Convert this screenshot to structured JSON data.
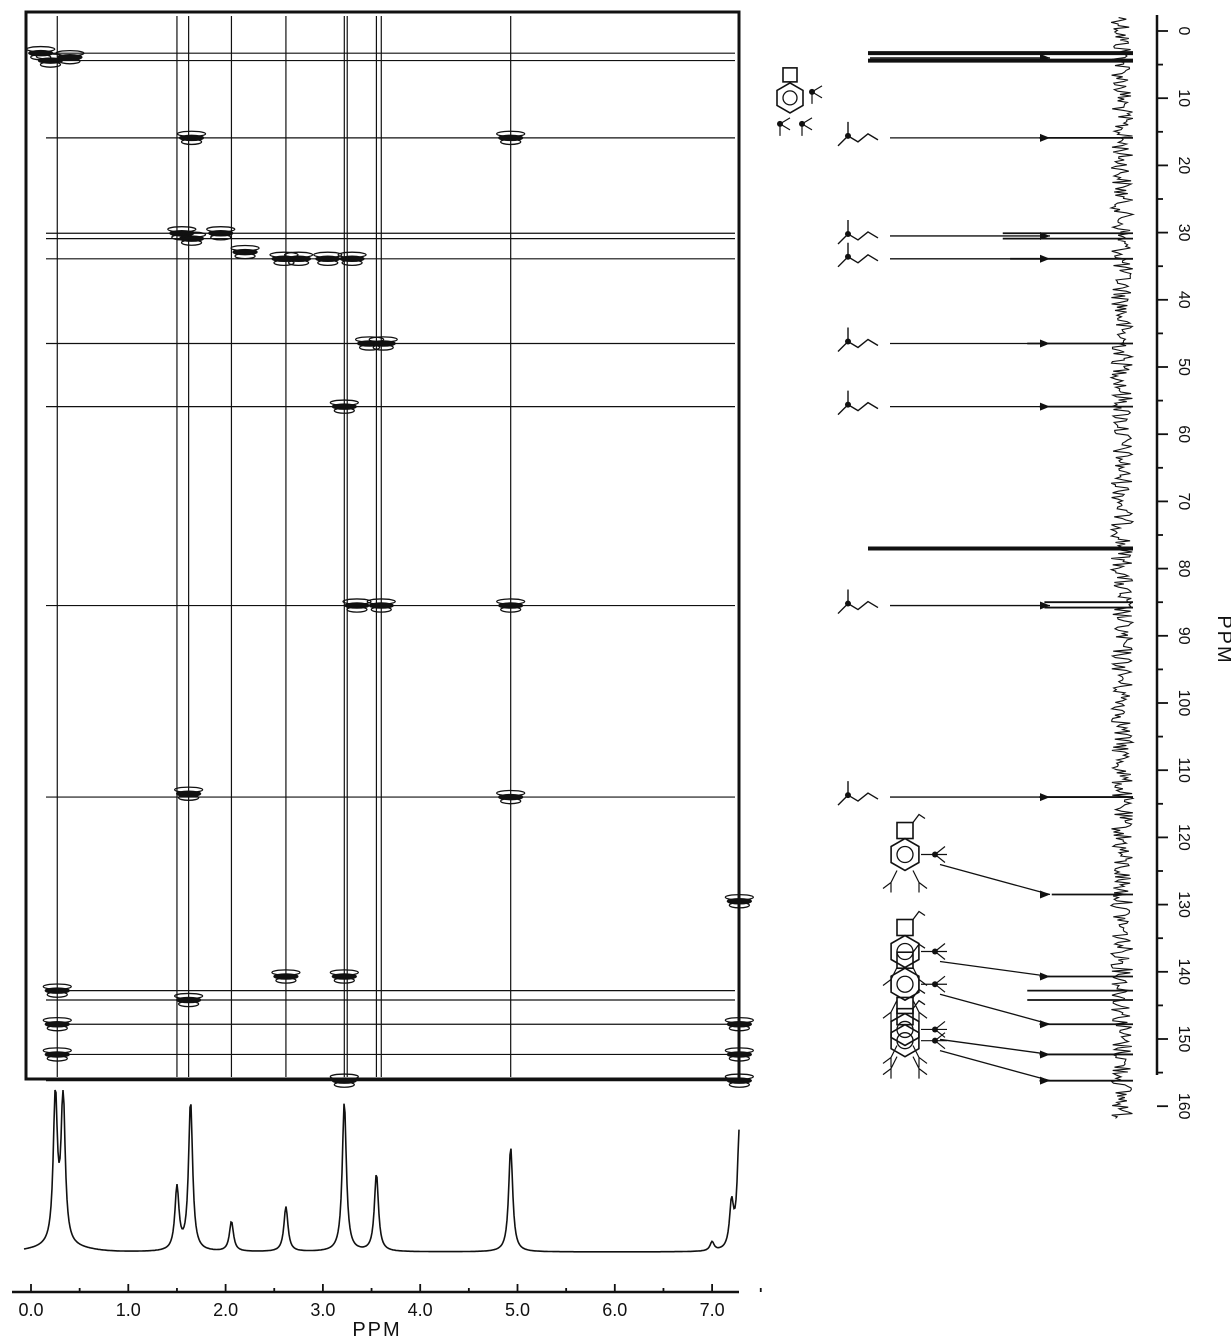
{
  "colors": {
    "ink": "#111111",
    "background": "#ffffff"
  },
  "chart_data": [
    {
      "type": "heatmap",
      "subtype": "2D HETCOR contour map",
      "title": "",
      "xlabel": "PPM",
      "ylabel": "PPM",
      "xlim": [
        0.0,
        7.5
      ],
      "ylim": [
        0,
        160
      ],
      "x_ticks": [
        0.0,
        1.0,
        2.0,
        3.0,
        4.0,
        5.0,
        6.0,
        7.0
      ],
      "x_tick_labels": [
        "0.0",
        "1.0",
        "2.0",
        "3.0",
        "4.0",
        "5.0",
        "6.0",
        "7.0"
      ],
      "y_ticks": [
        0,
        10,
        20,
        30,
        40,
        50,
        60,
        70,
        80,
        90,
        100,
        110,
        120,
        130,
        140,
        150,
        160
      ],
      "y_tick_labels": [
        "0",
        "10",
        "20",
        "30",
        "40",
        "50",
        "60",
        "70",
        "80",
        "90",
        "100",
        "110",
        "120",
        "130",
        "140",
        "150",
        "160"
      ],
      "grid": false,
      "proton_guide_lines_ppm": [
        0.27,
        1.5,
        1.62,
        2.06,
        2.62,
        3.22,
        3.25,
        3.55,
        3.6,
        4.93
      ],
      "carbon_guide_lines_ppm": [
        3.3,
        4.4,
        15.9,
        30.1,
        30.9,
        33.9,
        46.5,
        55.9,
        85.5,
        114.0,
        142.8,
        144.2,
        147.8,
        152.3,
        156.2
      ],
      "cross_peaks": [
        {
          "x": 0.1,
          "y": 3.3
        },
        {
          "x": 0.2,
          "y": 4.4
        },
        {
          "x": 0.4,
          "y": 3.9
        },
        {
          "x": 1.65,
          "y": 15.9
        },
        {
          "x": 4.93,
          "y": 15.9
        },
        {
          "x": 1.55,
          "y": 30.1
        },
        {
          "x": 1.65,
          "y": 30.9
        },
        {
          "x": 1.95,
          "y": 30.1
        },
        {
          "x": 2.2,
          "y": 32.9
        },
        {
          "x": 2.6,
          "y": 33.9
        },
        {
          "x": 2.75,
          "y": 33.9
        },
        {
          "x": 3.05,
          "y": 33.9
        },
        {
          "x": 3.3,
          "y": 33.9
        },
        {
          "x": 3.48,
          "y": 46.5
        },
        {
          "x": 3.62,
          "y": 46.5
        },
        {
          "x": 3.22,
          "y": 55.9
        },
        {
          "x": 3.35,
          "y": 85.5
        },
        {
          "x": 3.6,
          "y": 85.5
        },
        {
          "x": 4.93,
          "y": 85.5
        },
        {
          "x": 1.62,
          "y": 113.5
        },
        {
          "x": 4.93,
          "y": 114.0
        },
        {
          "x": 7.28,
          "y": 129.5
        },
        {
          "x": 2.62,
          "y": 140.7
        },
        {
          "x": 3.22,
          "y": 140.7
        },
        {
          "x": 0.27,
          "y": 142.8
        },
        {
          "x": 1.62,
          "y": 144.2
        },
        {
          "x": 0.27,
          "y": 147.8
        },
        {
          "x": 7.28,
          "y": 147.8
        },
        {
          "x": 0.27,
          "y": 152.3
        },
        {
          "x": 7.28,
          "y": 152.3
        },
        {
          "x": 3.22,
          "y": 156.2
        },
        {
          "x": 7.28,
          "y": 156.2
        }
      ]
    },
    {
      "type": "line",
      "subtype": "1H NMR spectrum (F2 projection)",
      "xlabel": "PPM",
      "xlim": [
        0.0,
        7.5
      ],
      "x_ticks": [
        0.0,
        1.0,
        2.0,
        3.0,
        4.0,
        5.0,
        6.0,
        7.0
      ],
      "x_tick_labels": [
        "0.0",
        "1.0",
        "2.0",
        "3.0",
        "4.0",
        "5.0",
        "6.0",
        "7.0"
      ],
      "peaks": [
        {
          "x": 0.25,
          "height": 1.0
        },
        {
          "x": 0.33,
          "height": 1.0
        },
        {
          "x": 1.5,
          "height": 0.42
        },
        {
          "x": 1.64,
          "height": 1.0
        },
        {
          "x": 2.06,
          "height": 0.2
        },
        {
          "x": 2.62,
          "height": 0.3
        },
        {
          "x": 3.22,
          "height": 1.0
        },
        {
          "x": 3.55,
          "height": 0.52
        },
        {
          "x": 4.93,
          "height": 0.7
        },
        {
          "x": 7.0,
          "height": 0.06
        },
        {
          "x": 7.2,
          "height": 0.3
        },
        {
          "x": 7.28,
          "height": 0.8
        },
        {
          "x": 7.45,
          "height": 0.1
        }
      ]
    },
    {
      "type": "bar",
      "subtype": "13C NMR spectrum (F1 projection, rotated)",
      "ylabel": "PPM",
      "ylim": [
        0,
        160
      ],
      "y_ticks": [
        0,
        10,
        20,
        30,
        40,
        50,
        60,
        70,
        80,
        90,
        100,
        110,
        120,
        130,
        140,
        150,
        160
      ],
      "y_tick_labels": [
        "0",
        "10",
        "20",
        "30",
        "40",
        "50",
        "60",
        "70",
        "80",
        "90",
        "100",
        "110",
        "120",
        "130",
        "140",
        "150",
        "160"
      ],
      "peaks": [
        {
          "ppm": 3.3,
          "intensity": 1.0
        },
        {
          "ppm": 4.4,
          "intensity": 1.0
        },
        {
          "ppm": 15.9,
          "intensity": 0.3
        },
        {
          "ppm": 30.1,
          "intensity": 0.45
        },
        {
          "ppm": 30.9,
          "intensity": 0.45
        },
        {
          "ppm": 33.9,
          "intensity": 0.42
        },
        {
          "ppm": 46.5,
          "intensity": 0.35
        },
        {
          "ppm": 55.9,
          "intensity": 0.3
        },
        {
          "ppm": 77.0,
          "intensity": 1.0
        },
        {
          "ppm": 85.0,
          "intensity": 0.28
        },
        {
          "ppm": 85.8,
          "intensity": 0.28
        },
        {
          "ppm": 114.0,
          "intensity": 0.3
        },
        {
          "ppm": 128.5,
          "intensity": 0.25
        },
        {
          "ppm": 140.7,
          "intensity": 0.3
        },
        {
          "ppm": 142.8,
          "intensity": 0.35
        },
        {
          "ppm": 144.2,
          "intensity": 0.35
        },
        {
          "ppm": 147.8,
          "intensity": 0.3
        },
        {
          "ppm": 152.3,
          "intensity": 0.3
        },
        {
          "ppm": 156.2,
          "intensity": 0.3
        }
      ],
      "assignment_pointers": [
        {
          "ppm": 4.0,
          "structure": "arene-SiMe3"
        },
        {
          "ppm": 15.9,
          "structure": "propenyl-methyl"
        },
        {
          "ppm": 30.5,
          "structure": "ether-methylene"
        },
        {
          "ppm": 33.9,
          "structure": "cyclobutene-CH2"
        },
        {
          "ppm": 46.5,
          "structure": "cyclobutene-CH"
        },
        {
          "ppm": 55.9,
          "structure": "methoxy"
        },
        {
          "ppm": 85.5,
          "structure": "ether-methine"
        },
        {
          "ppm": 114.0,
          "structure": "vinyl-CH2"
        },
        {
          "ppm": 128.5,
          "structure": "arene-CH"
        },
        {
          "ppm": 140.7,
          "structure": "arene-quaternary"
        },
        {
          "ppm": 147.8,
          "structure": "vinyl-quaternary"
        },
        {
          "ppm": 152.3,
          "structure": "arene-C-Si"
        },
        {
          "ppm": 156.2,
          "structure": "arene-C-Si-2"
        }
      ]
    }
  ]
}
